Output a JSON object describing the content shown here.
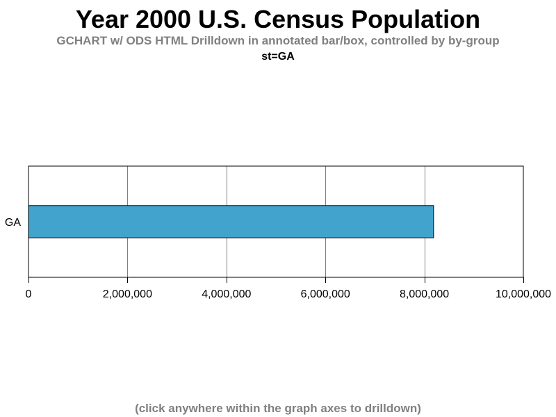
{
  "chart_data": {
    "type": "bar",
    "orientation": "horizontal",
    "title": "Year 2000 U.S. Census Population",
    "subtitle": "GCHART w/ ODS HTML Drilldown in annotated bar/box, controlled by by-group",
    "by_group_label": "st=GA",
    "footnote": "(click anywhere within the graph axes to drilldown)",
    "categories": [
      "GA"
    ],
    "values": [
      8186453
    ],
    "xlim": [
      0,
      10000000
    ],
    "x_ticks": [
      0,
      2000000,
      4000000,
      6000000,
      8000000,
      10000000
    ],
    "x_tick_labels": [
      "0",
      "2,000,000",
      "4,000,000",
      "6,000,000",
      "8,000,000",
      "10,000,000"
    ],
    "xlabel": "",
    "ylabel": "",
    "grid": true,
    "bar_color": "#42A4CD",
    "subtitle_color": "#808080"
  }
}
